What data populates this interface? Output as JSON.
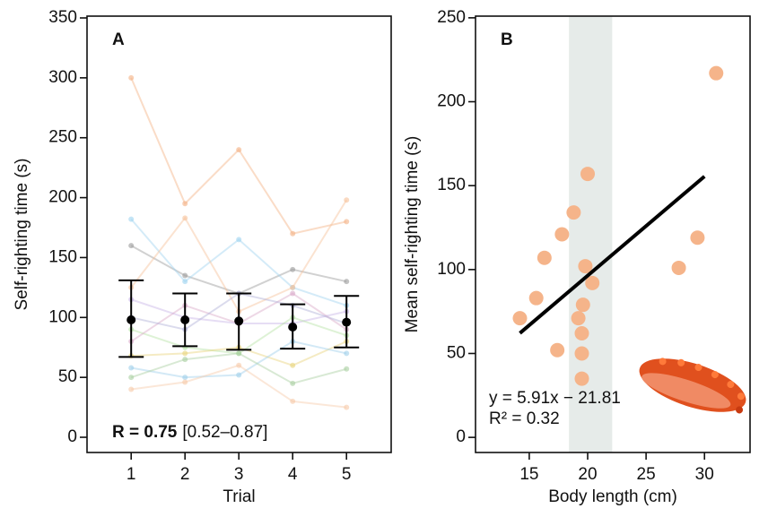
{
  "chart_data": [
    {
      "type": "line",
      "panel_label": "A",
      "xlabel": "Trial",
      "ylabel": "Self-righting time (s)",
      "x": [
        1,
        2,
        3,
        4,
        5
      ],
      "xlim": [
        0.18,
        5.83
      ],
      "xticks": [
        1,
        2,
        3,
        4,
        5
      ],
      "ylim": [
        -12.7,
        351.5
      ],
      "yticks": [
        0,
        50,
        100,
        150,
        200,
        250,
        300,
        350
      ],
      "series": [
        {
          "color": "#f4b183",
          "values": [
            300,
            195,
            240,
            170,
            180
          ]
        },
        {
          "color": "#999999",
          "values": [
            160,
            135,
            120,
            140,
            130
          ]
        },
        {
          "color": "#9fd3f0",
          "values": [
            182,
            130,
            165,
            125,
            110
          ]
        },
        {
          "color": "#f6c29a",
          "values": [
            125,
            183,
            105,
            125,
            198
          ]
        },
        {
          "color": "#c7b3e6",
          "values": [
            115,
            100,
            95,
            95,
            105
          ]
        },
        {
          "color": "#b6e3a5",
          "values": [
            90,
            75,
            70,
            100,
            85
          ]
        },
        {
          "color": "#e8d37a",
          "values": [
            68,
            70,
            75,
            60,
            80
          ]
        },
        {
          "color": "#9ecfea",
          "values": [
            58,
            50,
            52,
            80,
            70
          ]
        },
        {
          "color": "#a8cfa0",
          "values": [
            50,
            65,
            70,
            45,
            57
          ]
        },
        {
          "color": "#f7c9a9",
          "values": [
            40,
            46,
            60,
            30,
            25
          ]
        },
        {
          "color": "#d9a8c8",
          "values": [
            80,
            110,
            95,
            120,
            90
          ]
        },
        {
          "color": "#b0b0d8",
          "values": [
            100,
            90,
            120,
            110,
            95
          ]
        }
      ],
      "mean": {
        "color": "#000000",
        "values": [
          98,
          98,
          97,
          92,
          96
        ],
        "lower": [
          67,
          76,
          73,
          74,
          75
        ],
        "upper": [
          131,
          120,
          120,
          111,
          118
        ]
      },
      "annotation_bold": "R = 0.75",
      "annotation": "[0.52–0.87]"
    },
    {
      "type": "scatter",
      "panel_label": "B",
      "xlabel": "Body length (cm)",
      "ylabel": "Mean self-righting time (s)",
      "xlim": [
        10.4,
        33.9
      ],
      "xticks": [
        15,
        20,
        25,
        30
      ],
      "ylim": [
        -9,
        251
      ],
      "yticks": [
        0,
        50,
        100,
        150,
        200,
        250
      ],
      "shaded_band": [
        18.4,
        22.1
      ],
      "shade_color": "#e6ebe9",
      "x": [
        14.2,
        15.6,
        16.3,
        17.8,
        17.4,
        18.8,
        20,
        19.8,
        20.4,
        19.6,
        19.2,
        19.5,
        19.5,
        19.5,
        27.8,
        29.4,
        31
      ],
      "values": [
        71,
        83,
        107,
        121,
        52,
        134,
        157,
        102,
        92,
        79,
        71,
        62,
        50,
        35,
        101,
        119,
        217
      ],
      "color": "#f5b48a",
      "fit": {
        "slope": 5.91,
        "intercept": -21.81,
        "x_range": [
          14.2,
          30
        ],
        "color": "#000000"
      },
      "equation": "y = 5.91x − 21.81",
      "r_squared": "R² = 0.32"
    }
  ]
}
